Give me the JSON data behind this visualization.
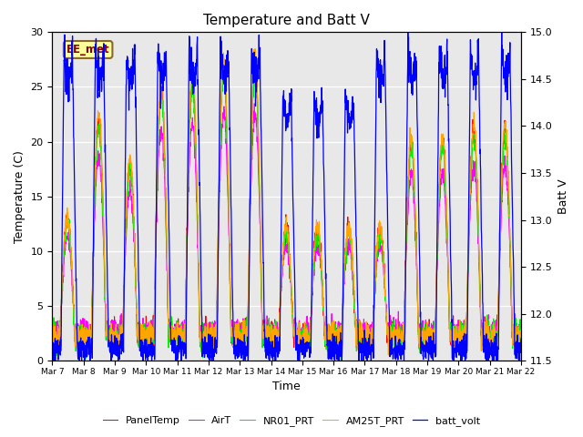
{
  "title": "Temperature and Batt V",
  "xlabel": "Time",
  "ylabel_left": "Temperature (C)",
  "ylabel_right": "Batt V",
  "ylim_left": [
    0,
    30
  ],
  "ylim_right": [
    11.5,
    15.0
  ],
  "n_days": 15,
  "start_day": 7,
  "annotation": "EE_met",
  "bg_color": "#e8e8e8",
  "series": [
    "PanelTemp",
    "AirT",
    "NR01_PRT",
    "AM25T_PRT",
    "batt_volt"
  ],
  "colors": [
    "red",
    "#ff00ff",
    "#00ee00",
    "orange",
    "blue"
  ],
  "yticks_left": [
    0,
    5,
    10,
    15,
    20,
    25,
    30
  ],
  "yticks_right": [
    11.5,
    12.0,
    12.5,
    13.0,
    13.5,
    14.0,
    14.5,
    15.0
  ],
  "title_fontsize": 11,
  "axis_label_fontsize": 9,
  "tick_fontsize": 8,
  "legend_fontsize": 8
}
